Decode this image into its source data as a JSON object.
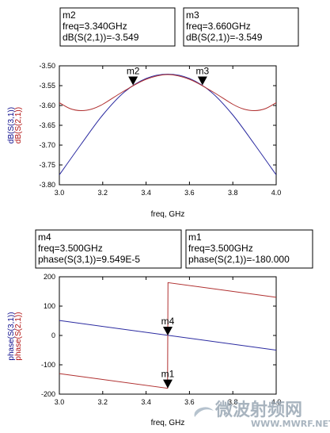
{
  "chart_data": [
    {
      "type": "line",
      "xlabel": "freq, GHz",
      "ylabel": [
        {
          "text": "dB(S(3,1))",
          "color": "#0a0a8c"
        },
        {
          "text": "dB(S(2,1))",
          "color": "#b01010"
        }
      ],
      "xlim": [
        3.0,
        4.0
      ],
      "ylim": [
        -3.8,
        -3.5
      ],
      "xticks": [
        "3.0",
        "3.2",
        "3.4",
        "3.6",
        "3.8",
        "4.0"
      ],
      "yticks": [
        "-3.50",
        "-3.55",
        "-3.60",
        "-3.65",
        "-3.70",
        "-3.75",
        "-3.80"
      ],
      "grid": false,
      "series": [
        {
          "name": "dB(S(3,1))",
          "color": "#2a2aa0",
          "x": [
            3.0,
            3.1,
            3.2,
            3.3,
            3.4,
            3.5,
            3.6,
            3.7,
            3.8,
            3.9,
            4.0
          ],
          "y": [
            -3.775,
            -3.698,
            -3.624,
            -3.566,
            -3.532,
            -3.521,
            -3.532,
            -3.566,
            -3.624,
            -3.698,
            -3.775
          ]
        },
        {
          "name": "dB(S(2,1))",
          "color": "#b03030",
          "x": [
            3.0,
            3.05,
            3.1,
            3.15,
            3.2,
            3.3,
            3.4,
            3.5,
            3.6,
            3.7,
            3.8,
            3.85,
            3.9,
            3.95,
            4.0
          ],
          "y": [
            -3.593,
            -3.608,
            -3.613,
            -3.609,
            -3.597,
            -3.563,
            -3.534,
            -3.522,
            -3.534,
            -3.563,
            -3.597,
            -3.609,
            -3.613,
            -3.608,
            -3.593
          ]
        }
      ],
      "markers": [
        {
          "name": "m2",
          "x": 3.34,
          "y": -3.549,
          "lines": [
            "m2",
            "freq=3.340GHz",
            "dB(S(2,1))=-3.549"
          ]
        },
        {
          "name": "m3",
          "x": 3.66,
          "y": -3.549,
          "lines": [
            "m3",
            "freq=3.660GHz",
            "dB(S(2,1))=-3.549"
          ]
        }
      ]
    },
    {
      "type": "line",
      "xlabel": "freq, GHz",
      "ylabel": [
        {
          "text": "phase(S(3,1))",
          "color": "#0a0a8c"
        },
        {
          "text": "phase(S(2,1))",
          "color": "#b01010"
        }
      ],
      "xlim": [
        3.0,
        4.0
      ],
      "ylim": [
        -200,
        200
      ],
      "xticks": [
        "3.0",
        "3.2",
        "3.4",
        "3.6",
        "3.8",
        "4.0"
      ],
      "yticks": [
        "200",
        "100",
        "0",
        "-100",
        "-200"
      ],
      "grid": false,
      "series": [
        {
          "name": "phase(S(3,1))",
          "color": "#2a2aa0",
          "x": [
            3.0,
            4.0
          ],
          "y": [
            51,
            -50
          ]
        },
        {
          "name": "phase(S(2,1))",
          "color": "#b03030",
          "x": [
            3.0,
            3.499,
            3.5,
            3.501,
            4.0
          ],
          "y": [
            -130,
            -180,
            0,
            180,
            130
          ]
        }
      ],
      "markers": [
        {
          "name": "m4",
          "x": 3.5,
          "y": 0,
          "lines": [
            "m4",
            "freq=3.500GHz",
            "phase(S(3,1))=9.549E-5"
          ]
        },
        {
          "name": "m1",
          "x": 3.5,
          "y": -180,
          "lines": [
            "m1",
            "freq=3.500GHz",
            "phase(S(2,1))=-180.000"
          ]
        }
      ]
    }
  ],
  "watermark": {
    "title": "微波射频网",
    "url": "WWW.MWRF.NET"
  }
}
